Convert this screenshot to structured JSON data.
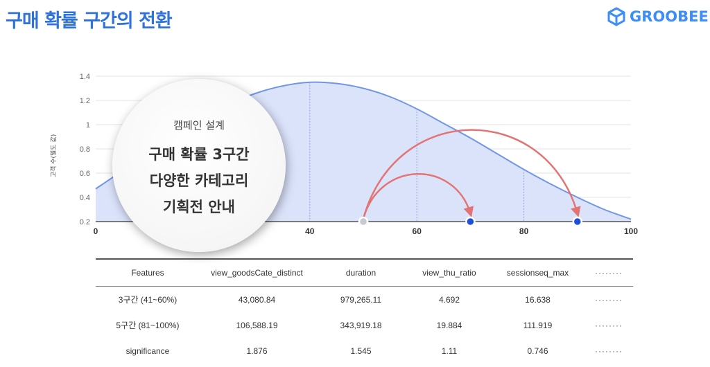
{
  "header": {
    "title": "구매 확률 구간의 전환",
    "logo_text": "GROOBEE"
  },
  "callout": {
    "subtitle": "캠페인 설계",
    "lines": [
      "구매 확률 3구간",
      "다양한 카테고리",
      "기획전 안내"
    ]
  },
  "chart_data": {
    "type": "area",
    "ylabel": "고객 수(밀도 값)",
    "xlim": [
      0,
      100
    ],
    "ylim": [
      0.2,
      1.4
    ],
    "x_ticks": [
      "0",
      "40",
      "60",
      "80",
      "100"
    ],
    "y_ticks": [
      "0.2",
      "0.4",
      "0.6",
      "0.8",
      "1",
      "1.2",
      "1.4"
    ],
    "grid": true,
    "x": [
      0,
      5,
      10,
      15,
      20,
      25,
      30,
      35,
      40,
      45,
      50,
      55,
      60,
      65,
      70,
      75,
      80,
      85,
      90,
      95,
      100
    ],
    "y": [
      0.47,
      0.62,
      0.78,
      0.93,
      1.06,
      1.17,
      1.26,
      1.32,
      1.35,
      1.34,
      1.3,
      1.23,
      1.13,
      1.01,
      0.89,
      0.76,
      0.63,
      0.51,
      0.4,
      0.3,
      0.22
    ],
    "vlines": [
      40,
      60,
      80
    ],
    "markers": [
      {
        "x": 50,
        "kind": "start"
      },
      {
        "x": 70,
        "kind": "target"
      },
      {
        "x": 90,
        "kind": "target"
      }
    ],
    "arrows": [
      {
        "from": 50,
        "to": 70
      },
      {
        "from": 50,
        "to": 90
      }
    ],
    "colors": {
      "fill": "#dbe3fb",
      "line": "#7196e8",
      "vline": "#8a9fe0",
      "arrow": "#e27474",
      "target_marker": "#1d4fd8",
      "start_marker": "#c8c8d0"
    }
  },
  "table": {
    "headers": [
      "Features",
      "view_goodsCate_distinct",
      "duration",
      "view_thu_ratio",
      "sessionseq_max",
      "········"
    ],
    "rows": [
      [
        "3구간 (41~60%)",
        "43,080.84",
        "979,265.11",
        "4.692",
        "16.638",
        "········"
      ],
      [
        "5구간 (81~100%)",
        "106,588.19",
        "343,919.18",
        "19.884",
        "111.919",
        "········"
      ],
      [
        "significance",
        "1.876",
        "1.545",
        "1.11",
        "0.746",
        "········"
      ]
    ]
  }
}
